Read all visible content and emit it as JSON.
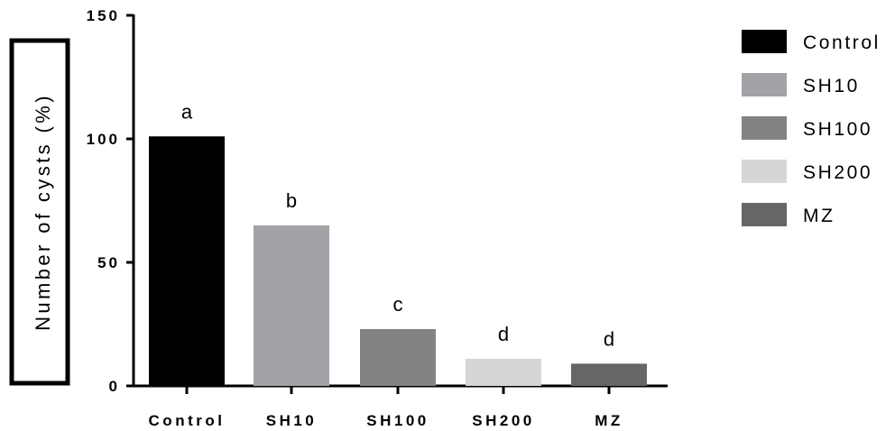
{
  "chart_data": {
    "type": "bar",
    "categories": [
      "Control",
      "SH10",
      "SH100",
      "SH200",
      "MZ"
    ],
    "values": [
      101,
      65,
      23,
      11,
      9
    ],
    "significance_letters": [
      "a",
      "b",
      "c",
      "d",
      "d"
    ],
    "colors": [
      "#000000",
      "#a3a3a7",
      "#838383",
      "#d6d6d6",
      "#666666"
    ],
    "ylabel": "Number of cysts (%)",
    "xlabel": "",
    "title": "",
    "ylim": [
      0,
      150
    ],
    "yticks": [
      "0",
      "50",
      "100",
      "150"
    ],
    "legend": {
      "position": "right",
      "entries": [
        "Control",
        "SH10",
        "SH100",
        "SH200",
        "MZ"
      ]
    },
    "grid": false
  }
}
